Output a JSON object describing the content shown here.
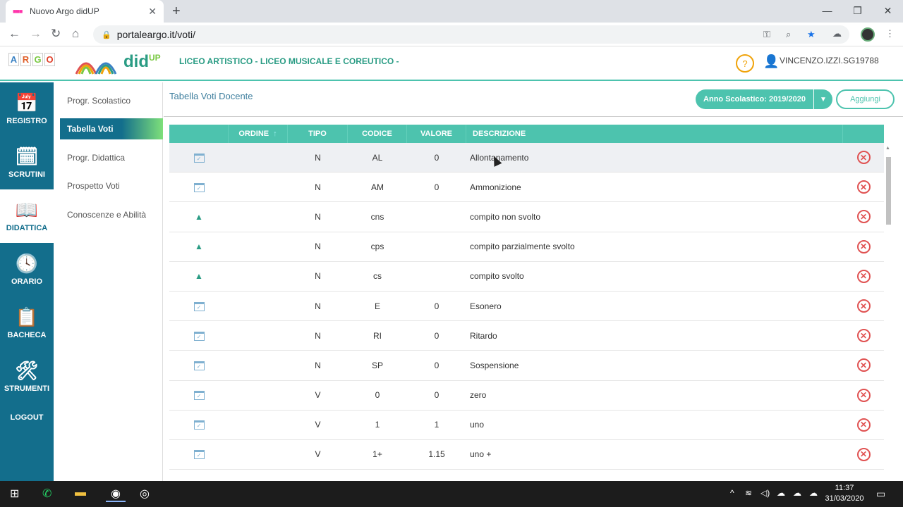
{
  "browser": {
    "tab_title": "Nuovo Argo didUP",
    "url": "portaleargo.it/voti/"
  },
  "header": {
    "argo_letters": [
      "A",
      "R",
      "G",
      "O"
    ],
    "logo_text": "did",
    "logo_sup": "UP",
    "school": "LICEO ARTISTICO - LICEO MUSICALE E COREUTICO -",
    "help": "?",
    "username": "VINCENZO.IZZI.SG19788"
  },
  "leftnav": {
    "items": [
      {
        "label": "REGISTRO",
        "icon": "calendar-check-icon"
      },
      {
        "label": "SCRUTINI",
        "icon": "calendar-plus-icon"
      },
      {
        "label": "DIDATTICA",
        "icon": "book-icon"
      },
      {
        "label": "ORARIO",
        "icon": "clock-icon"
      },
      {
        "label": "BACHECA",
        "icon": "board-icon"
      },
      {
        "label": "STRUMENTI",
        "icon": "tools-icon"
      },
      {
        "label": "LOGOUT",
        "icon": ""
      }
    ]
  },
  "subnav": {
    "items": [
      "Progr. Scolastico",
      "Tabella Voti",
      "Progr. Didattica",
      "Prospetto Voti",
      "Conoscenze e Abilità"
    ]
  },
  "main": {
    "title": "Tabella Voti Docente",
    "anno_label": "Anno Scolastico: 2019/2020",
    "add_label": "Aggiungi"
  },
  "table": {
    "headers": [
      "",
      "ORDINE",
      "TIPO",
      "CODICE",
      "VALORE",
      "DESCRIZIONE",
      ""
    ],
    "rows": [
      {
        "icon": "calendar",
        "tipo": "N",
        "codice": "AL",
        "valore": "0",
        "descrizione": "Allontanamento"
      },
      {
        "icon": "calendar",
        "tipo": "N",
        "codice": "AM",
        "valore": "0",
        "descrizione": "Ammonizione"
      },
      {
        "icon": "person",
        "tipo": "N",
        "codice": "cns",
        "valore": "",
        "descrizione": "compito non svolto"
      },
      {
        "icon": "person",
        "tipo": "N",
        "codice": "cps",
        "valore": "",
        "descrizione": "compito parzialmente svolto"
      },
      {
        "icon": "person",
        "tipo": "N",
        "codice": "cs",
        "valore": "",
        "descrizione": "compito svolto"
      },
      {
        "icon": "calendar",
        "tipo": "N",
        "codice": "E",
        "valore": "0",
        "descrizione": "Esonero"
      },
      {
        "icon": "calendar",
        "tipo": "N",
        "codice": "RI",
        "valore": "0",
        "descrizione": "Ritardo"
      },
      {
        "icon": "calendar",
        "tipo": "N",
        "codice": "SP",
        "valore": "0",
        "descrizione": "Sospensione"
      },
      {
        "icon": "calendar",
        "tipo": "V",
        "codice": "0",
        "valore": "0",
        "descrizione": "zero"
      },
      {
        "icon": "calendar",
        "tipo": "V",
        "codice": "1",
        "valore": "1",
        "descrizione": "uno"
      },
      {
        "icon": "calendar",
        "tipo": "V",
        "codice": "1+",
        "valore": "1.15",
        "descrizione": "uno +"
      }
    ]
  },
  "taskbar": {
    "time": "11:37",
    "date": "31/03/2020"
  },
  "colors": {
    "accent": "#4dc3ae",
    "nav": "#136e8c",
    "delete": "#e05252"
  }
}
